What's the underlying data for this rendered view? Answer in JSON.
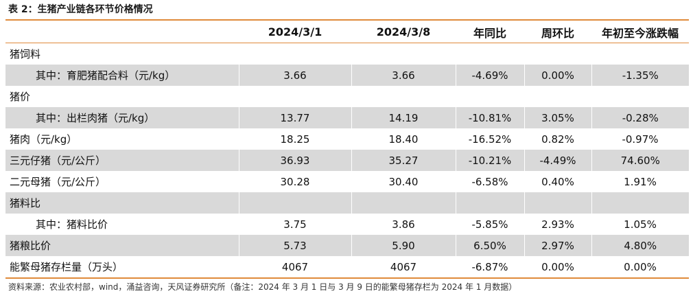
{
  "caption": "表 2：生猪产业链各环节价格情况",
  "columns": [
    "",
    "2024/3/1",
    "2024/3/8",
    "年同比",
    "周环比",
    "年初至今涨跌幅"
  ],
  "rows": [
    {
      "label": "猪饲料",
      "indent": false,
      "shade": false,
      "cells": [
        "",
        "",
        "",
        "",
        ""
      ]
    },
    {
      "label": "其中：育肥猪配合料（元/kg）",
      "indent": true,
      "shade": true,
      "cells": [
        "3.66",
        "3.66",
        "-4.69%",
        "0.00%",
        "-1.35%"
      ]
    },
    {
      "label": "猪价",
      "indent": false,
      "shade": false,
      "cells": [
        "",
        "",
        "",
        "",
        ""
      ]
    },
    {
      "label": "其中：出栏肉猪（元/kg）",
      "indent": true,
      "shade": true,
      "cells": [
        "13.77",
        "14.19",
        "-10.81%",
        "3.05%",
        "-0.28%"
      ]
    },
    {
      "label": "猪肉（元/kg）",
      "indent": false,
      "shade": false,
      "cells": [
        "18.25",
        "18.40",
        "-16.52%",
        "0.82%",
        "-0.97%"
      ]
    },
    {
      "label": "三元仔猪（元/公斤）",
      "indent": false,
      "shade": true,
      "cells": [
        "36.93",
        "35.27",
        "-10.21%",
        "-4.49%",
        "74.60%"
      ]
    },
    {
      "label": "二元母猪（元/公斤）",
      "indent": false,
      "shade": false,
      "cells": [
        "30.28",
        "30.40",
        "-6.58%",
        "0.40%",
        "1.91%"
      ]
    },
    {
      "label": "猪料比",
      "indent": false,
      "shade": true,
      "cells": [
        "",
        "",
        "",
        "",
        ""
      ]
    },
    {
      "label": "其中：猪料比价",
      "indent": true,
      "shade": false,
      "cells": [
        "3.75",
        "3.86",
        "-5.85%",
        "2.93%",
        "1.05%"
      ]
    },
    {
      "label": "猪粮比价",
      "indent": false,
      "shade": true,
      "cells": [
        "5.73",
        "5.90",
        "6.50%",
        "2.97%",
        "4.80%"
      ]
    },
    {
      "label": "能繁母猪存栏量（万头）",
      "indent": false,
      "shade": false,
      "cells": [
        "4067",
        "4067",
        "-6.87%",
        "0.00%",
        "0.00%"
      ]
    }
  ],
  "source": "资料来源：农业农村部，wind，涌益咨询，天风证券研究所（备注：2024 年 3 月 1 日与 3 月 9 日的能繁母猪存栏为 2024 年 1 月数据）",
  "colors": {
    "accent": "#e08a3a",
    "shade": "#d9d9d9"
  }
}
